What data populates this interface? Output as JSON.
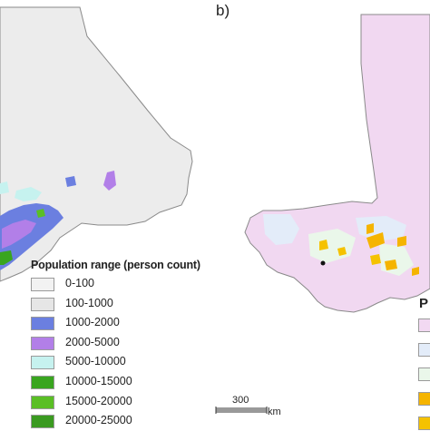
{
  "panel_label_b": "b)",
  "legend_a": {
    "title": "Population range (person count)",
    "items": [
      {
        "label": "0-100",
        "color": "#f2f2f2"
      },
      {
        "label": "100-1000",
        "color": "#e6e6e6"
      },
      {
        "label": "1000-2000",
        "color": "#6b7fe0"
      },
      {
        "label": "2000-5000",
        "color": "#b27fe8"
      },
      {
        "label": "5000-10000",
        "color": "#c6f2ef"
      },
      {
        "label": "10000-15000",
        "color": "#39a51f"
      },
      {
        "label": "15000-20000",
        "color": "#5abf25"
      },
      {
        "label": "20000-25000",
        "color": "#3a9a20"
      }
    ]
  },
  "legend_b": {
    "title": "P",
    "swatches": [
      "#f2d9f2",
      "#e3ecf9",
      "#eaf7ea",
      "#f5b400",
      "#f5c200"
    ]
  },
  "scale": {
    "value": "300",
    "unit": "km"
  },
  "map_colors": {
    "panel_a_fill": "#ececec",
    "panel_b_fill": "#f1d8f1",
    "outline": "#8a8a8a"
  }
}
